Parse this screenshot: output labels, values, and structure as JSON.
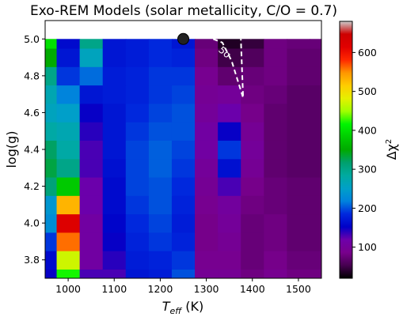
{
  "chart_data": {
    "type": "heatmap",
    "title": "Exo-REM Models (solar metallicity, C/O = 0.7)",
    "xlabel": {
      "main": "T",
      "sub": "eff",
      "unit": " (K)"
    },
    "ylabel": "log(g)",
    "colorbar_label": {
      "main": "Δχ",
      "sup": "2"
    },
    "colormap": "nipy_spectral",
    "xlim": [
      950,
      1550
    ],
    "ylim": [
      3.7,
      5.1
    ],
    "clim": [
      20,
      680
    ],
    "x_ticks": [
      "1000",
      "1100",
      "1200",
      "1300",
      "1400",
      "1500"
    ],
    "y_ticks": [
      "3.8",
      "4.0",
      "4.2",
      "4.4",
      "4.6",
      "4.8",
      "5.0"
    ],
    "colorbar_ticks": [
      "100",
      "200",
      "300",
      "400",
      "500",
      "600"
    ],
    "x": [
      950,
      1000,
      1050,
      1100,
      1150,
      1200,
      1250,
      1300,
      1350,
      1400,
      1450,
      1500,
      1550
    ],
    "y": [
      3.7,
      3.8,
      3.9,
      4.0,
      4.1,
      4.2,
      4.3,
      4.4,
      4.5,
      4.6,
      4.7,
      4.8,
      4.9,
      5.0
    ],
    "z": [
      [
        150,
        420,
        130,
        130,
        170,
        175,
        200,
        95,
        95,
        80,
        90,
        80,
        80
      ],
      [
        160,
        470,
        110,
        140,
        175,
        180,
        190,
        90,
        90,
        75,
        85,
        75,
        75
      ],
      [
        190,
        560,
        110,
        150,
        180,
        190,
        180,
        85,
        95,
        75,
        80,
        70,
        70
      ],
      [
        230,
        620,
        110,
        155,
        185,
        195,
        175,
        85,
        100,
        75,
        80,
        70,
        70
      ],
      [
        240,
        530,
        120,
        160,
        190,
        200,
        180,
        90,
        105,
        80,
        75,
        70,
        70
      ],
      [
        310,
        380,
        120,
        160,
        195,
        200,
        185,
        95,
        130,
        85,
        75,
        70,
        70
      ],
      [
        330,
        300,
        130,
        165,
        195,
        205,
        190,
        100,
        165,
        95,
        70,
        65,
        65
      ],
      [
        320,
        280,
        130,
        170,
        195,
        205,
        195,
        110,
        190,
        100,
        70,
        65,
        65
      ],
      [
        280,
        270,
        140,
        170,
        190,
        200,
        200,
        110,
        150,
        95,
        70,
        65,
        65
      ],
      [
        260,
        250,
        150,
        170,
        185,
        195,
        200,
        100,
        120,
        85,
        70,
        65,
        65
      ],
      [
        270,
        220,
        170,
        175,
        180,
        190,
        195,
        95,
        100,
        80,
        75,
        65,
        65
      ],
      [
        300,
        190,
        210,
        175,
        180,
        190,
        190,
        90,
        70,
        75,
        80,
        70,
        70
      ],
      [
        350,
        170,
        260,
        170,
        175,
        185,
        180,
        80,
        50,
        60,
        80,
        70,
        70
      ],
      [
        400,
        160,
        300,
        170,
        175,
        185,
        170,
        75,
        35,
        45,
        80,
        75,
        75
      ]
    ],
    "contours": [
      {
        "label": "5σ",
        "points": [
          [
            1315,
            5.0
          ],
          [
            1335,
            4.98
          ],
          [
            1355,
            4.88
          ],
          [
            1375,
            4.72
          ],
          [
            1380,
            4.68
          ],
          [
            1378,
            4.8
          ],
          [
            1375,
            5.0
          ]
        ]
      }
    ],
    "markers": [
      {
        "x": 1250,
        "y": 5.0
      }
    ]
  }
}
